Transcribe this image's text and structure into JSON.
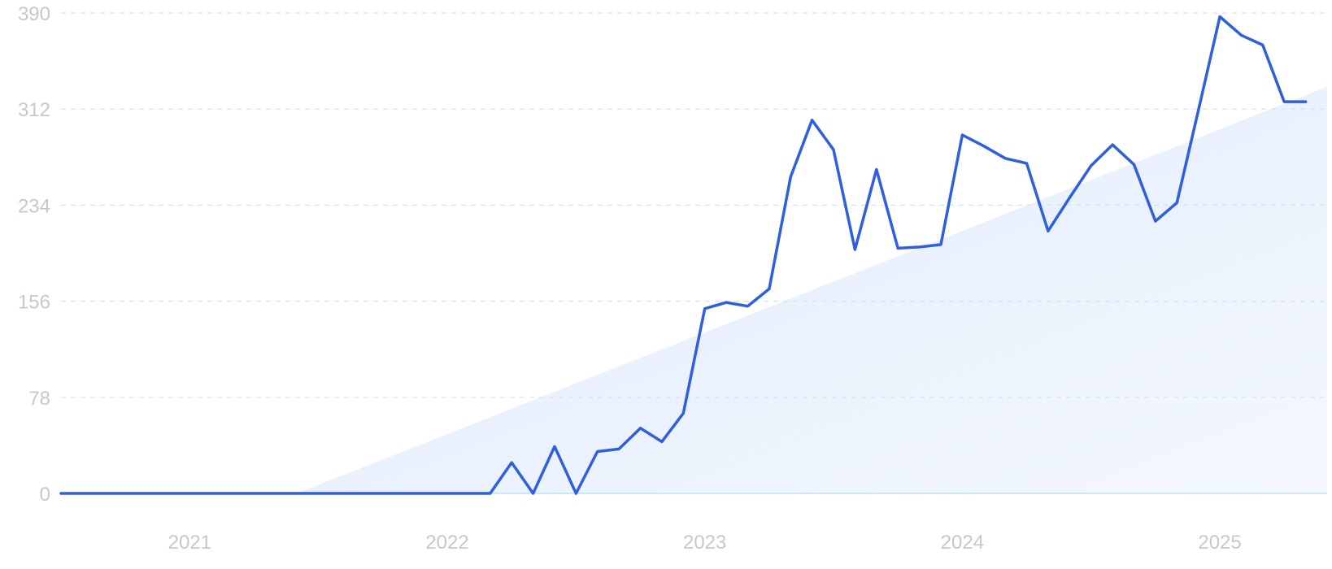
{
  "chart_data": {
    "type": "line",
    "title": "",
    "xlabel": "",
    "ylabel": "",
    "ylim": [
      0,
      390
    ],
    "xlim": [
      "2020-07",
      "2025-06"
    ],
    "grid": true,
    "y_ticks": [
      0,
      78,
      156,
      234,
      312,
      390
    ],
    "x_ticks": [
      {
        "label": "2021",
        "date": "2021-01"
      },
      {
        "label": "2022",
        "date": "2022-01"
      },
      {
        "label": "2023",
        "date": "2023-01"
      },
      {
        "label": "2024",
        "date": "2024-01"
      },
      {
        "label": "2025",
        "date": "2025-01"
      }
    ],
    "series": [
      {
        "color": "#2e5fdc",
        "x": [
          "2020-07",
          "2020-08",
          "2020-09",
          "2020-10",
          "2020-11",
          "2020-12",
          "2021-01",
          "2021-02",
          "2021-03",
          "2021-04",
          "2021-05",
          "2021-06",
          "2021-07",
          "2021-08",
          "2021-09",
          "2021-10",
          "2021-11",
          "2021-12",
          "2022-01",
          "2022-02",
          "2022-03",
          "2022-04",
          "2022-05",
          "2022-06",
          "2022-07",
          "2022-08",
          "2022-09",
          "2022-10",
          "2022-11",
          "2022-12",
          "2023-01",
          "2023-02",
          "2023-03",
          "2023-04",
          "2023-05",
          "2023-06",
          "2023-07",
          "2023-08",
          "2023-09",
          "2023-10",
          "2023-11",
          "2023-12",
          "2024-01",
          "2024-02",
          "2024-03",
          "2024-04",
          "2024-05",
          "2024-06",
          "2024-07",
          "2024-08",
          "2024-09",
          "2024-10",
          "2024-11",
          "2024-12",
          "2025-01",
          "2025-02",
          "2025-03",
          "2025-04",
          "2025-05"
        ],
        "values": [
          0,
          0,
          0,
          0,
          0,
          0,
          0,
          0,
          0,
          0,
          0,
          0,
          0,
          0,
          0,
          0,
          0,
          0,
          0,
          0,
          0,
          25,
          0,
          38,
          0,
          34,
          36,
          53,
          42,
          65,
          150,
          155,
          152,
          166,
          257,
          303,
          279,
          198,
          263,
          199,
          200,
          202,
          291,
          282,
          272,
          268,
          213,
          240,
          266,
          283,
          267,
          221,
          236,
          311,
          387,
          372,
          364,
          318,
          318
        ]
      }
    ],
    "trend": {
      "color": "#e6effa",
      "x": [
        "2021-06",
        "2025-06"
      ],
      "values": [
        0,
        330
      ]
    }
  }
}
